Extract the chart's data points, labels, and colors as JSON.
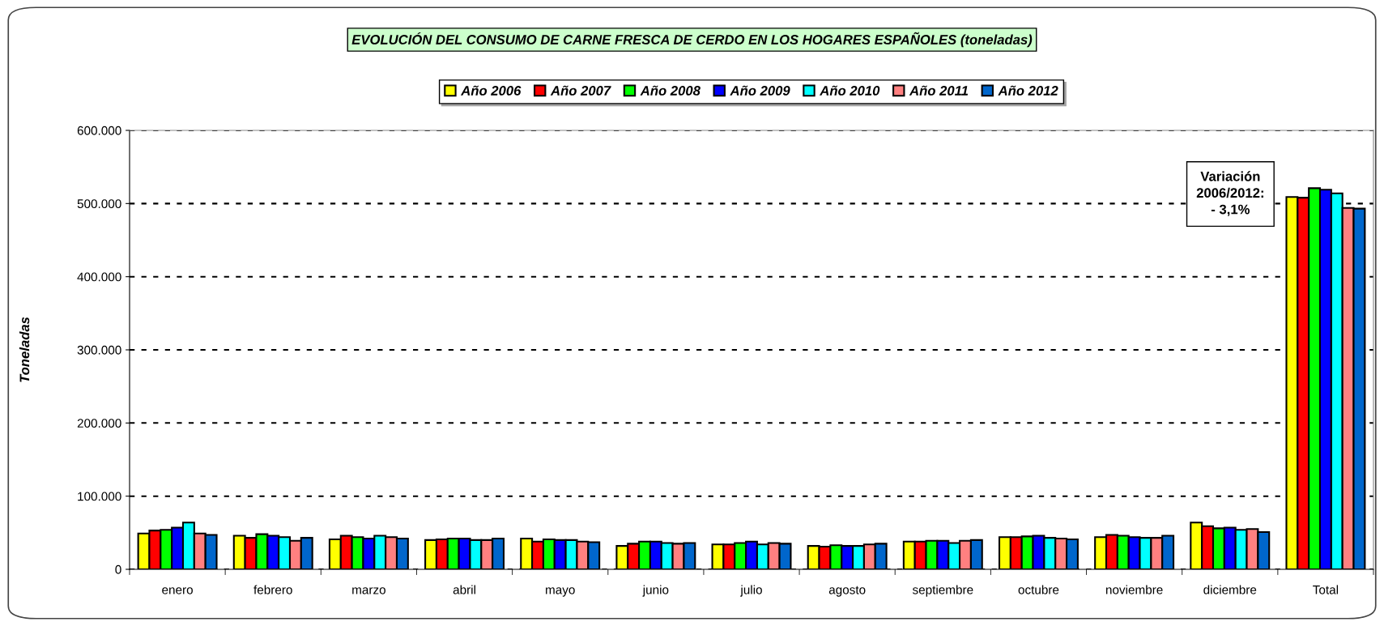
{
  "chart_data": {
    "type": "bar",
    "title": "EVOLUCIÓN DEL CONSUMO DE CARNE FRESCA DE CERDO EN LOS HOGARES ESPAÑOLES (toneladas)",
    "ylabel": "Toneladas",
    "categories": [
      "enero",
      "febrero",
      "marzo",
      "abril",
      "mayo",
      "junio",
      "julio",
      "agosto",
      "septiembre",
      "octubre",
      "noviembre",
      "diciembre",
      "Total"
    ],
    "series": [
      {
        "name": "Año 2006",
        "color": "#ffff00",
        "values": [
          49000,
          46000,
          41000,
          40000,
          42000,
          32000,
          34000,
          32000,
          38000,
          44000,
          44000,
          64000,
          509000
        ]
      },
      {
        "name": "Año 2007",
        "color": "#ff0000",
        "values": [
          53000,
          43000,
          46000,
          41000,
          38000,
          35000,
          34000,
          31000,
          38000,
          44000,
          47000,
          59000,
          508000
        ]
      },
      {
        "name": "Año 2008",
        "color": "#00ff00",
        "values": [
          54000,
          48000,
          44000,
          42000,
          41000,
          38000,
          36000,
          33000,
          39000,
          45000,
          46000,
          56000,
          521000
        ]
      },
      {
        "name": "Año 2009",
        "color": "#0000ff",
        "values": [
          57000,
          46000,
          42000,
          42000,
          40000,
          38000,
          38000,
          32000,
          39000,
          46000,
          44000,
          57000,
          519000
        ]
      },
      {
        "name": "Año 2010",
        "color": "#00ffff",
        "values": [
          64000,
          44000,
          46000,
          40000,
          40000,
          36000,
          34000,
          32000,
          36000,
          43000,
          43000,
          54000,
          514000
        ]
      },
      {
        "name": "Año 2011",
        "color": "#ff8080",
        "values": [
          49000,
          39000,
          44000,
          40000,
          38000,
          35000,
          36000,
          34000,
          39000,
          42000,
          43000,
          55000,
          494000
        ]
      },
      {
        "name": "Año 2012",
        "color": "#0066cc",
        "values": [
          47000,
          43000,
          42000,
          42000,
          37000,
          36000,
          35000,
          35000,
          40000,
          41000,
          46000,
          51000,
          493000
        ]
      }
    ],
    "ylim": [
      0,
      600000
    ],
    "yticks": [
      {
        "value": 0,
        "label": "0"
      },
      {
        "value": 100000,
        "label": "100.000"
      },
      {
        "value": 200000,
        "label": "200.000"
      },
      {
        "value": 300000,
        "label": "300.000"
      },
      {
        "value": 400000,
        "label": "400.000"
      },
      {
        "value": 500000,
        "label": "500.000"
      },
      {
        "value": 600000,
        "label": "600.000"
      }
    ],
    "grid": "y",
    "legend": "top",
    "annotations": [
      "Variación\n2006/2012:\n- 3,1%"
    ]
  }
}
